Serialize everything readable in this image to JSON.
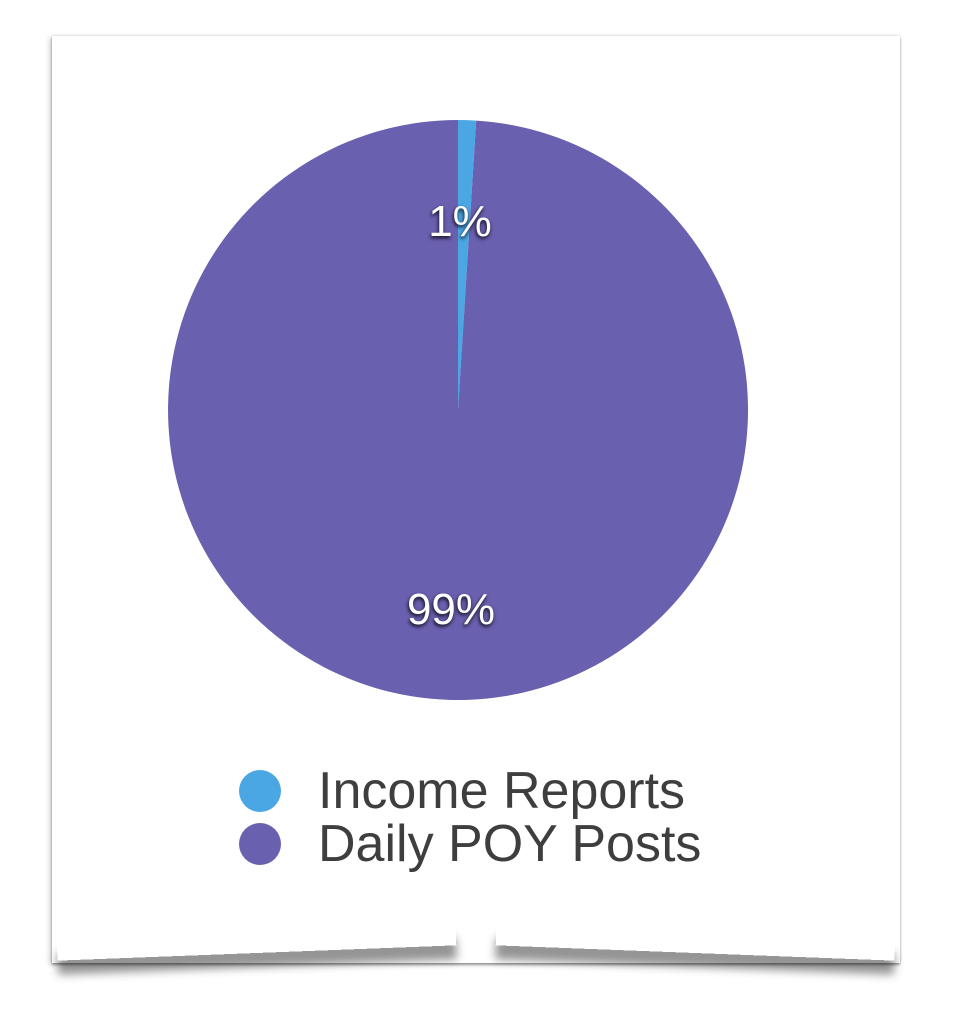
{
  "chart_data": {
    "type": "pie",
    "labels": [
      "Income Reports",
      "Daily POY Posts"
    ],
    "values": [
      1,
      99
    ],
    "value_labels": [
      "1%",
      "99%"
    ],
    "colors": [
      "#4BA7E3",
      "#6A60B0"
    ],
    "start_angle_deg": 0,
    "direction": "clockwise",
    "legend_position": "bottom",
    "label_text_color": "#ffffff",
    "legend_text_color": "#3e3e3e"
  }
}
